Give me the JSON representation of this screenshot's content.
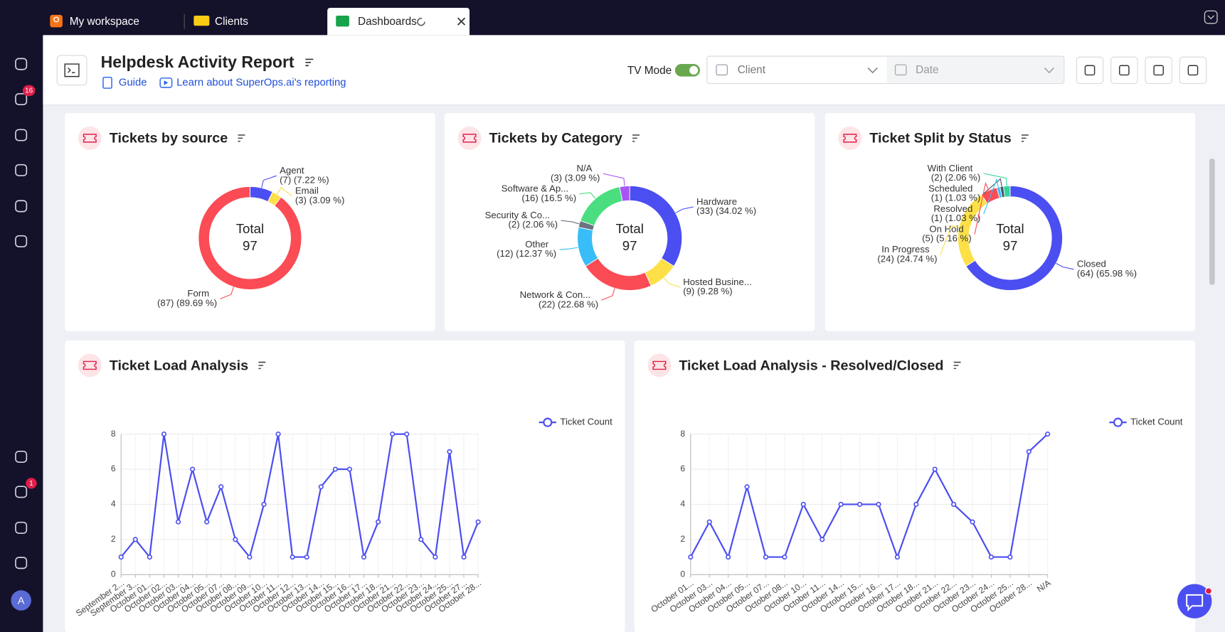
{
  "tabs": [
    "My workspace",
    "Clients",
    "Dashboards"
  ],
  "badges": {
    "notifications": 16,
    "timers": 1
  },
  "avatar": "A",
  "header": {
    "title": "Helpdesk Activity Report",
    "links": [
      "Guide",
      "Learn about SuperOps.ai's reporting"
    ],
    "tv_mode": "TV Mode",
    "filters": [
      "Client",
      "Date"
    ]
  },
  "donut_charts": [
    {
      "title": "Tickets by source",
      "center_label": "Total",
      "total": 97,
      "slices": [
        {
          "name": "Agent",
          "value": 7,
          "value_label": "(7) (7.22 %)",
          "color": "#4b4ef0"
        },
        {
          "name": "Email",
          "value": 3,
          "value_label": "(3) (3.09 %)",
          "color": "#fde047"
        },
        {
          "name": "Form",
          "value": 87,
          "value_label": "(87) (89.69 %)",
          "color": "#fb4b55"
        }
      ]
    },
    {
      "title": "Tickets by Category",
      "center_label": "Total",
      "total": 97,
      "slices": [
        {
          "name": "Hardware",
          "value": 33,
          "value_label": "(33) (34.02 %)",
          "color": "#4b4ef0"
        },
        {
          "name": "Hosted Busine...",
          "value": 9,
          "value_label": "(9) (9.28 %)",
          "color": "#fde047"
        },
        {
          "name": "Network & Con...",
          "value": 22,
          "value_label": "(22) (22.68 %)",
          "color": "#fb4b55"
        },
        {
          "name": "Other",
          "value": 12,
          "value_label": "(12) (12.37 %)",
          "color": "#38bdf8"
        },
        {
          "name": "Security & Co...",
          "value": 2,
          "value_label": "(2) (2.06 %)",
          "color": "#6b7280"
        },
        {
          "name": "Software & Ap...",
          "value": 16,
          "value_label": "(16) (16.5 %)",
          "color": "#4ade80"
        },
        {
          "name": "N/A",
          "value": 3,
          "value_label": "(3) (3.09 %)",
          "color": "#a855f7"
        }
      ]
    },
    {
      "title": "Ticket Split by Status",
      "center_label": "Total",
      "total": 97,
      "slices": [
        {
          "name": "Closed",
          "value": 64,
          "value_label": "(64) (65.98 %)",
          "color": "#4b4ef0"
        },
        {
          "name": "In Progress",
          "value": 24,
          "value_label": "(24) (24.74 %)",
          "color": "#fde047"
        },
        {
          "name": "On Hold",
          "value": 5,
          "value_label": "(5) (5.16 %)",
          "color": "#fb4b55"
        },
        {
          "name": "Resolved",
          "value": 1,
          "value_label": "(1) (1.03 %)",
          "color": "#38bdf8"
        },
        {
          "name": "Scheduled",
          "value": 1,
          "value_label": "(1) (1.03 %)",
          "color": "#475569"
        },
        {
          "name": "With Client",
          "value": 2,
          "value_label": "(2) (2.06 %)",
          "color": "#34d399"
        }
      ]
    }
  ],
  "line_charts": [
    {
      "title": "Ticket Load Analysis",
      "legend": "Ticket Count",
      "color": "#4b4ef0",
      "categories": [
        "September 2...",
        "September 3...",
        "October 01...",
        "October 02...",
        "October 03...",
        "October 04...",
        "October 05...",
        "October 07...",
        "October 08...",
        "October 09...",
        "October 10...",
        "October 11...",
        "October 12...",
        "October 13...",
        "October 14...",
        "October 15...",
        "October 16...",
        "October 17...",
        "October 18...",
        "October 21...",
        "October 22...",
        "October 23...",
        "October 24...",
        "October 25...",
        "October 27...",
        "October 28..."
      ],
      "values": [
        1,
        2,
        1,
        8,
        3,
        6,
        3,
        5,
        2,
        1,
        4,
        8,
        1,
        1,
        5,
        6,
        6,
        1,
        3,
        8,
        8,
        2,
        1,
        7,
        1,
        3
      ],
      "ylim": [
        0,
        8
      ],
      "yticks": [
        0,
        2,
        4,
        6,
        8
      ],
      "grid": true
    },
    {
      "title": "Ticket Load Analysis - Resolved/Closed",
      "legend": "Ticket Count",
      "color": "#4b4ef0",
      "categories": [
        "October 01...",
        "October 03...",
        "October 04...",
        "October 05...",
        "October 07...",
        "October 08...",
        "October 10...",
        "October 11...",
        "October 14...",
        "October 15...",
        "October 16...",
        "October 17...",
        "October 18...",
        "October 21...",
        "October 22...",
        "October 23...",
        "October 24...",
        "October 25...",
        "October 28...",
        "N/A"
      ],
      "values": [
        1,
        3,
        1,
        5,
        1,
        1,
        4,
        2,
        4,
        4,
        4,
        1,
        4,
        6,
        4,
        3,
        1,
        1,
        7,
        8
      ],
      "ylim": [
        0,
        8
      ],
      "yticks": [
        0,
        2,
        4,
        6,
        8
      ],
      "grid": true
    }
  ]
}
